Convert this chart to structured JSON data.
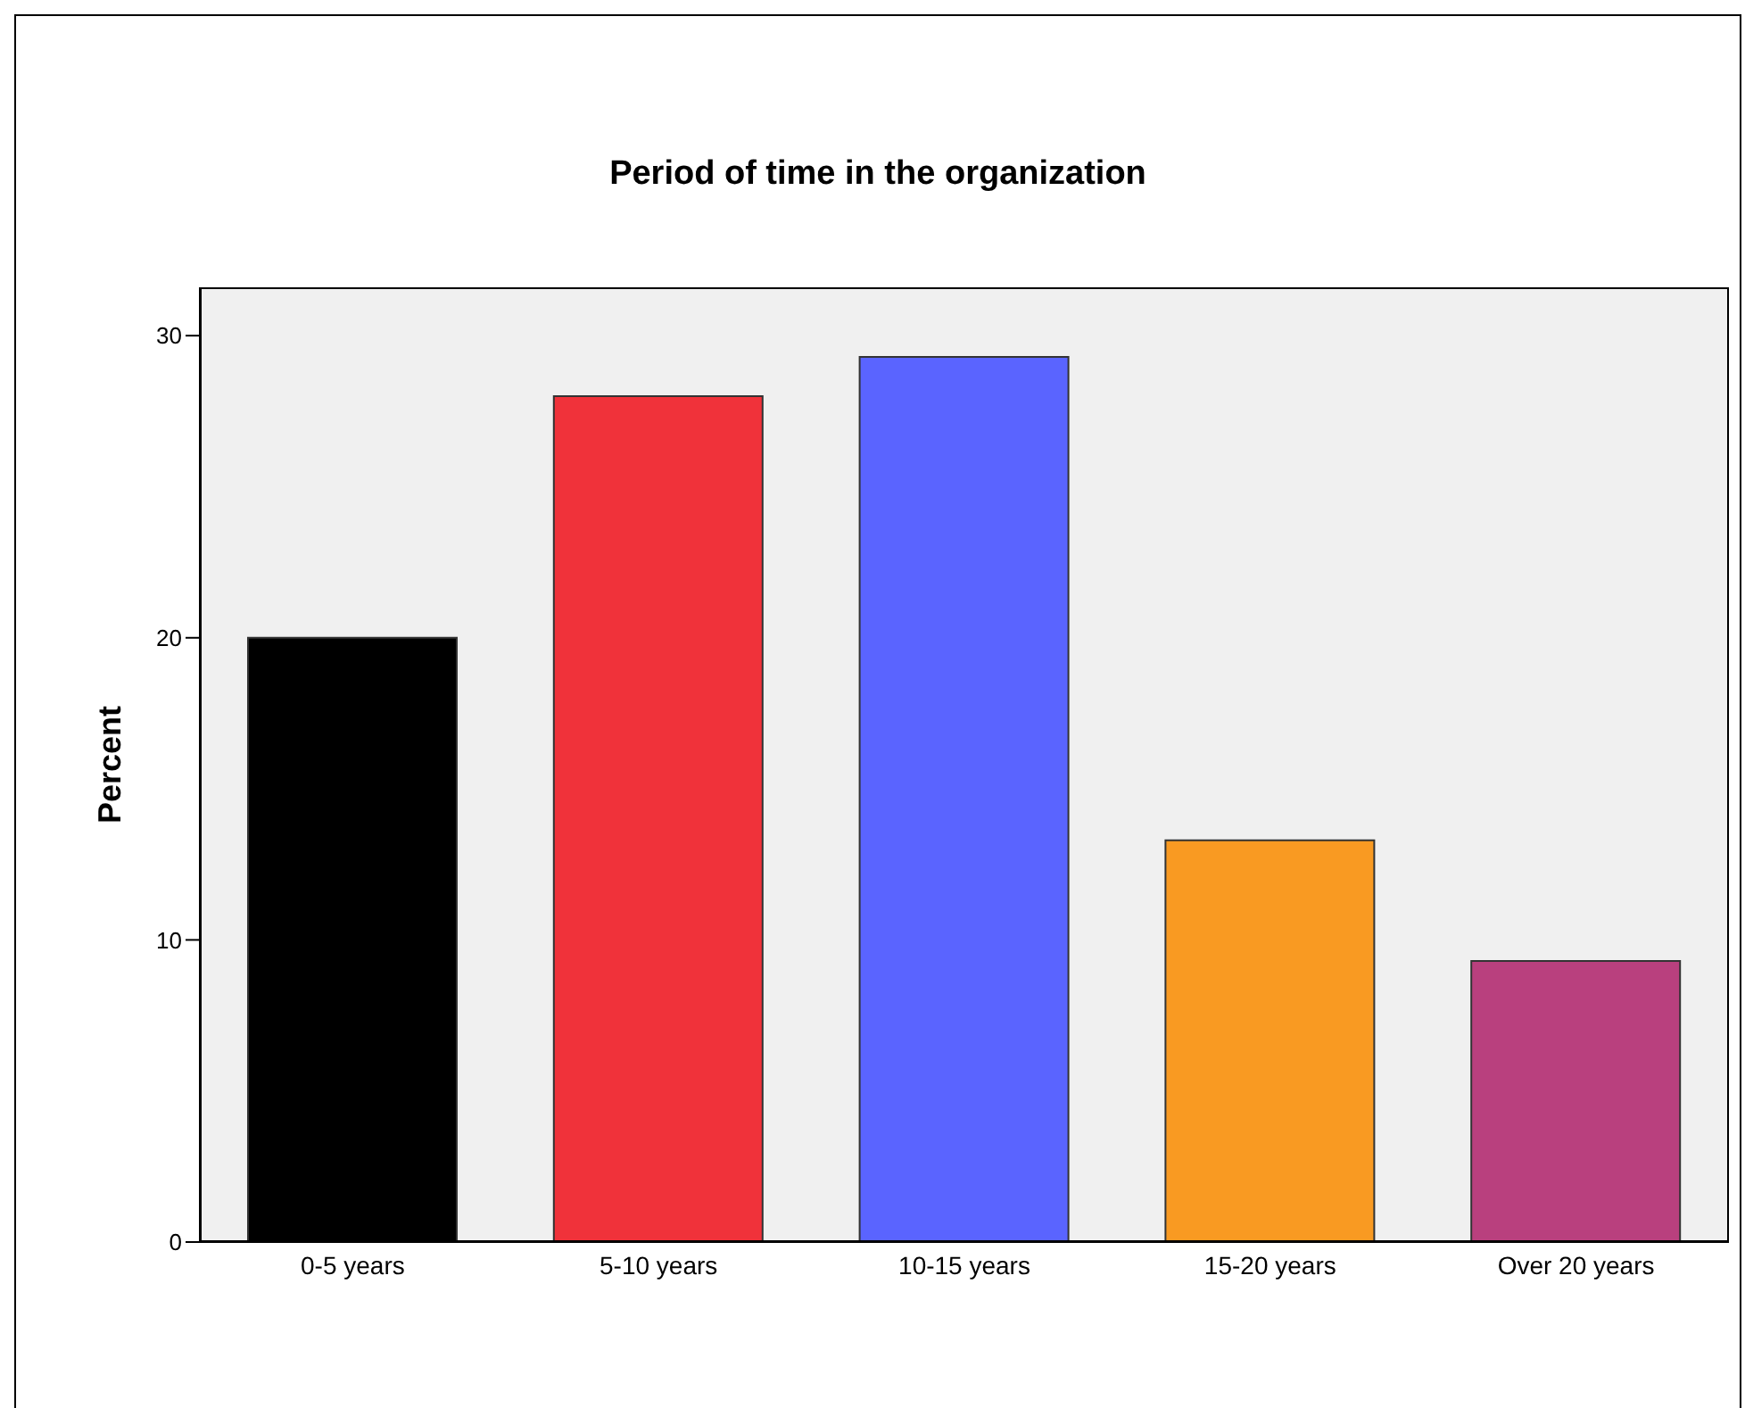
{
  "chart_data": {
    "type": "bar",
    "title": "Period of time in the organization",
    "ylabel": "Percent",
    "categories": [
      "0-5 years",
      "5-10 years",
      "10-15 years",
      "15-20 years",
      "Over 20 years"
    ],
    "values": [
      20,
      28,
      29.3,
      13.3,
      9.3
    ],
    "colors": [
      "#000000",
      "#f0323a",
      "#5a64ff",
      "#f99a22",
      "#b9407e"
    ],
    "ylim": [
      0,
      31.6
    ],
    "yticks": [
      0,
      10,
      20,
      30
    ]
  }
}
